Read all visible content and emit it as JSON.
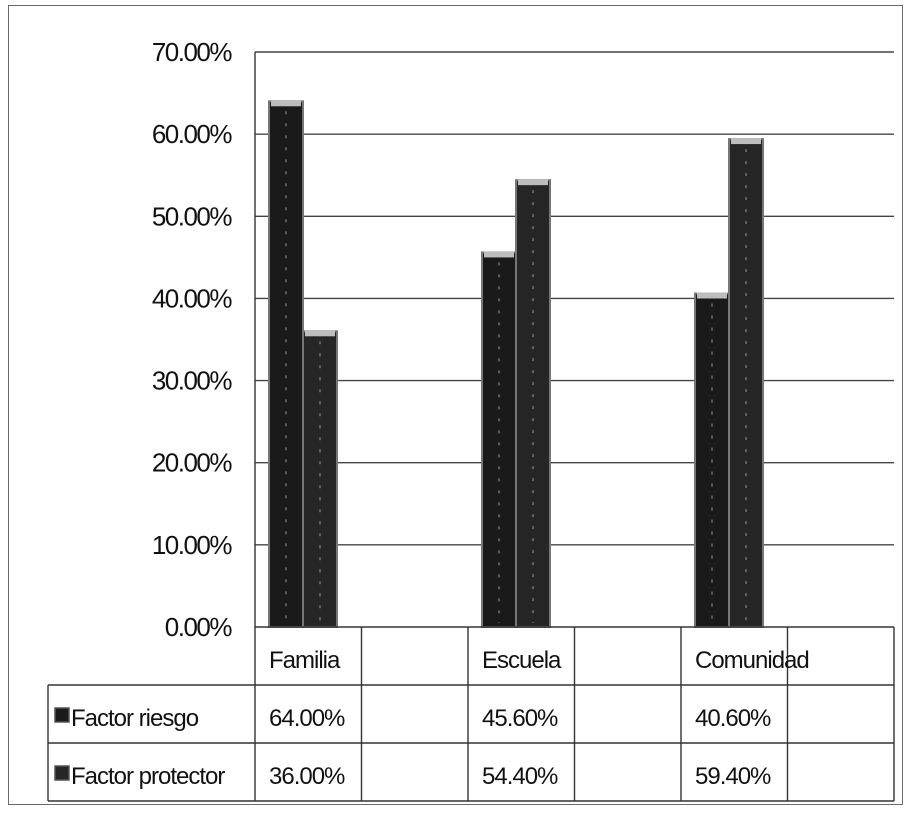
{
  "chart_data": {
    "type": "bar",
    "categories": [
      "Familia",
      "Escuela",
      "Comunidad"
    ],
    "series": [
      {
        "name": "Factor riesgo",
        "values": [
          64.0,
          45.6,
          40.6
        ],
        "labels": [
          "64.00%",
          "45.60%",
          "40.60%"
        ]
      },
      {
        "name": "Factor protector",
        "values": [
          36.0,
          54.4,
          59.4
        ],
        "labels": [
          "36.00%",
          "54.40%",
          "59.40%"
        ]
      }
    ],
    "ylim": [
      0,
      70
    ],
    "yticks": [
      0,
      10,
      20,
      30,
      40,
      50,
      60,
      70
    ],
    "ytick_labels": [
      "0.00%",
      "10.00%",
      "20.00%",
      "30.00%",
      "40.00%",
      "50.00%",
      "60.00%",
      "70.00%"
    ],
    "grid": true,
    "legend": "data-table",
    "title": "",
    "xlabel": "",
    "ylabel": ""
  },
  "colors": {
    "risk_bar": "#1a1a1a",
    "protector_bar": "#262626",
    "grid": "#444444",
    "background": "#ffffff"
  }
}
